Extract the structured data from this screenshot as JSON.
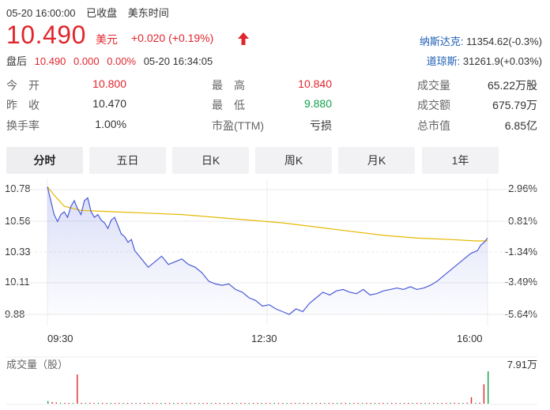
{
  "header": {
    "datetime": "05-20 16:00:00",
    "market_status": "已收盘",
    "timezone": "美东时间",
    "price": "10.490",
    "currency": "美元",
    "change": "+0.020 (+0.19%)",
    "after_hours": {
      "label": "盘后",
      "price": "10.490",
      "change": "0.000",
      "percent": "0.00%",
      "time": "05-20 16:34:05"
    }
  },
  "indices": [
    {
      "name": "纳斯达克:",
      "value": "11354.62(-0.3%)"
    },
    {
      "name": "道琼斯:",
      "value": "31261.9(+0.03%)"
    }
  ],
  "stats": [
    {
      "label": "今　开",
      "value": "10.800",
      "color": "red"
    },
    {
      "label": "最　高",
      "value": "10.840",
      "color": "red"
    },
    {
      "label": "成交量",
      "value": "65.22万股",
      "color": "normal"
    },
    {
      "label": "昨　收",
      "value": "10.470",
      "color": "normal"
    },
    {
      "label": "最　低",
      "value": "9.880",
      "color": "green"
    },
    {
      "label": "成交额",
      "value": "675.79万",
      "color": "normal"
    },
    {
      "label": "换手率",
      "value": "1.00%",
      "color": "normal"
    },
    {
      "label": "市盈(TTM)",
      "value": "亏损",
      "color": "normal"
    },
    {
      "label": "总市值",
      "value": "6.85亿",
      "color": "normal"
    }
  ],
  "tabs": [
    "分时",
    "五日",
    "日K",
    "周K",
    "月K",
    "1年"
  ],
  "active_tab": "分时",
  "colors": {
    "up": "#e0262d",
    "down": "#13a04a",
    "price_line": "#4a5bd6",
    "avg_line": "#e6b800"
  },
  "chart_data": {
    "type": "line",
    "y_ticks_price": [
      "10.78",
      "10.56",
      "10.33",
      "10.11",
      "9.88"
    ],
    "y_ticks_pct": [
      "2.96%",
      "0.81%",
      "-1.34%",
      "-3.49%",
      "-5.64%"
    ],
    "x_ticks": [
      "09:30",
      "12:30",
      "16:00"
    ],
    "ylim": [
      9.88,
      10.78
    ],
    "price_series": [
      [
        0,
        10.8
      ],
      [
        2,
        10.7
      ],
      [
        4,
        10.6
      ],
      [
        6,
        10.55
      ],
      [
        8,
        10.6
      ],
      [
        10,
        10.62
      ],
      [
        12,
        10.58
      ],
      [
        14,
        10.66
      ],
      [
        16,
        10.7
      ],
      [
        18,
        10.64
      ],
      [
        20,
        10.6
      ],
      [
        22,
        10.7
      ],
      [
        24,
        10.72
      ],
      [
        26,
        10.62
      ],
      [
        28,
        10.58
      ],
      [
        30,
        10.6
      ],
      [
        32,
        10.56
      ],
      [
        34,
        10.54
      ],
      [
        36,
        10.5
      ],
      [
        38,
        10.56
      ],
      [
        40,
        10.58
      ],
      [
        42,
        10.52
      ],
      [
        44,
        10.46
      ],
      [
        46,
        10.44
      ],
      [
        48,
        10.4
      ],
      [
        50,
        10.42
      ],
      [
        52,
        10.34
      ],
      [
        56,
        10.28
      ],
      [
        60,
        10.22
      ],
      [
        64,
        10.26
      ],
      [
        68,
        10.3
      ],
      [
        72,
        10.24
      ],
      [
        76,
        10.26
      ],
      [
        80,
        10.28
      ],
      [
        84,
        10.24
      ],
      [
        88,
        10.22
      ],
      [
        92,
        10.18
      ],
      [
        96,
        10.12
      ],
      [
        100,
        10.1
      ],
      [
        104,
        10.09
      ],
      [
        108,
        10.1
      ],
      [
        112,
        10.06
      ],
      [
        116,
        10.04
      ],
      [
        120,
        10.0
      ],
      [
        124,
        9.98
      ],
      [
        128,
        9.94
      ],
      [
        132,
        9.95
      ],
      [
        136,
        9.92
      ],
      [
        140,
        9.9
      ],
      [
        144,
        9.88
      ],
      [
        148,
        9.92
      ],
      [
        152,
        9.9
      ],
      [
        156,
        9.96
      ],
      [
        160,
        10.0
      ],
      [
        164,
        10.04
      ],
      [
        168,
        10.02
      ],
      [
        172,
        10.05
      ],
      [
        176,
        10.06
      ],
      [
        180,
        10.04
      ],
      [
        184,
        10.03
      ],
      [
        188,
        10.06
      ],
      [
        192,
        10.02
      ],
      [
        196,
        10.03
      ],
      [
        200,
        10.05
      ],
      [
        204,
        10.06
      ],
      [
        208,
        10.07
      ],
      [
        212,
        10.06
      ],
      [
        216,
        10.08
      ],
      [
        220,
        10.06
      ],
      [
        224,
        10.07
      ],
      [
        228,
        10.09
      ],
      [
        232,
        10.12
      ],
      [
        236,
        10.16
      ],
      [
        240,
        10.2
      ],
      [
        244,
        10.24
      ],
      [
        248,
        10.28
      ],
      [
        252,
        10.32
      ],
      [
        256,
        10.34
      ],
      [
        258,
        10.38
      ],
      [
        260,
        10.4
      ],
      [
        262,
        10.43
      ]
    ],
    "avg_series": [
      [
        0,
        10.8
      ],
      [
        4,
        10.74
      ],
      [
        10,
        10.66
      ],
      [
        20,
        10.63
      ],
      [
        40,
        10.62
      ],
      [
        60,
        10.61
      ],
      [
        80,
        10.6
      ],
      [
        100,
        10.58
      ],
      [
        120,
        10.56
      ],
      [
        140,
        10.54
      ],
      [
        160,
        10.51
      ],
      [
        180,
        10.48
      ],
      [
        200,
        10.45
      ],
      [
        220,
        10.43
      ],
      [
        240,
        10.42
      ],
      [
        255,
        10.41
      ],
      [
        262,
        10.41
      ]
    ],
    "volume_label": "成交量（股）",
    "volume_max": "7.91万",
    "volume_series": [
      0.08,
      0.05,
      0.04,
      0.03,
      0.02,
      0.02,
      0.02,
      0.9,
      0.02,
      0.01,
      0.03,
      0.02,
      0.02,
      0.01,
      0.02,
      0.01,
      0.02,
      0.02,
      0.01,
      0.01,
      0.02,
      0.01,
      0.01,
      0.01,
      0.02,
      0.01,
      0.01,
      0.01,
      0.02,
      0.01,
      0.01,
      0.01,
      0.02,
      0.01,
      0.01,
      0.01,
      0.01,
      0.01,
      0.01,
      0.01,
      0.02,
      0.01,
      0.01,
      0.01,
      0.01,
      0.01,
      0.01,
      0.01,
      0.01,
      0.01,
      0.01,
      0.01,
      0.01,
      0.02,
      0.01,
      0.01,
      0.01,
      0.01,
      0.01,
      0.01,
      0.01,
      0.01,
      0.01,
      0.02,
      0.01,
      0.01,
      0.01,
      0.01,
      0.01,
      0.01,
      0.01,
      0.01,
      0.01,
      0.01,
      0.01,
      0.01,
      0.02,
      0.01,
      0.01,
      0.01,
      0.01,
      0.01,
      0.01,
      0.01,
      0.01,
      0.01,
      0.01,
      0.01,
      0.01,
      0.01,
      0.01,
      0.01,
      0.01,
      0.02,
      0.02,
      0.02,
      0.03,
      0.03,
      0.02,
      0.02,
      0.03,
      0.2,
      0.02,
      0.03,
      0.6,
      1.0
    ]
  }
}
